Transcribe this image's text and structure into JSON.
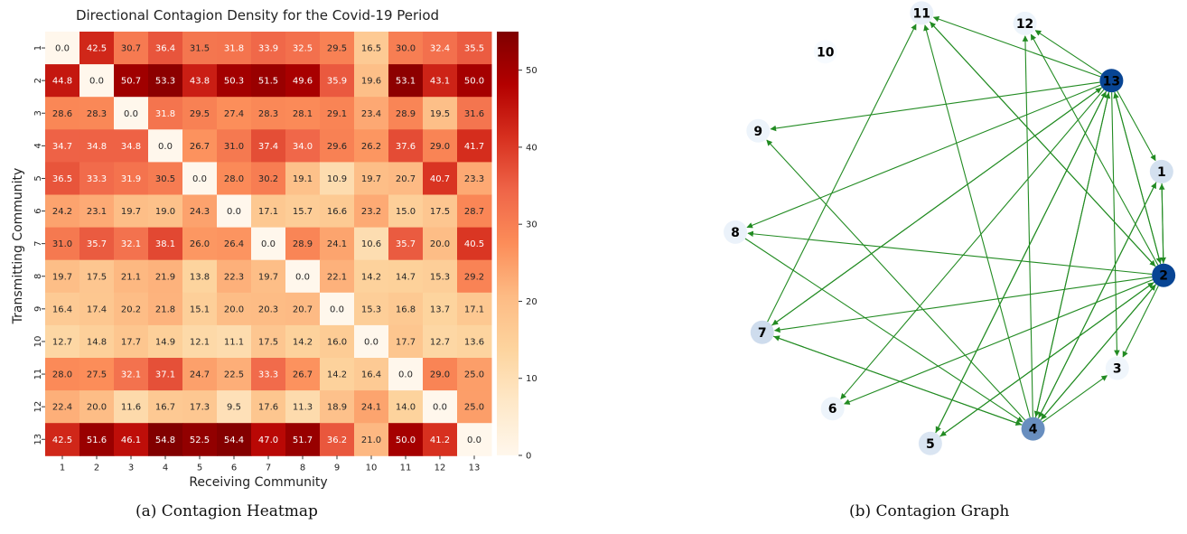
{
  "captions": {
    "left": "(a) Contagion Heatmap",
    "right": "(b) Contagion Graph"
  },
  "chart_data": [
    {
      "type": "heatmap",
      "title": "Directional Contagion Density for the Covid-19 Period",
      "xlabel": "Receiving Community",
      "ylabel": "Transmitting Community",
      "x_categories": [
        "1",
        "2",
        "3",
        "4",
        "5",
        "6",
        "7",
        "8",
        "9",
        "10",
        "11",
        "12",
        "13"
      ],
      "y_categories": [
        "1",
        "2",
        "3",
        "4",
        "5",
        "6",
        "7",
        "8",
        "9",
        "10",
        "11",
        "12",
        "13"
      ],
      "colormap": "OrRd",
      "colorbar": {
        "range": [
          0,
          55
        ],
        "ticks": [
          "0",
          "10",
          "20",
          "30",
          "40",
          "50"
        ]
      },
      "values": [
        [
          0.0,
          42.5,
          30.7,
          36.4,
          31.5,
          31.8,
          33.9,
          32.5,
          29.5,
          16.5,
          30.0,
          32.4,
          35.5
        ],
        [
          44.8,
          0.0,
          50.7,
          53.3,
          43.8,
          50.3,
          51.5,
          49.6,
          35.9,
          19.6,
          53.1,
          43.1,
          50.0
        ],
        [
          28.6,
          28.3,
          0.0,
          31.8,
          29.5,
          27.4,
          28.3,
          28.1,
          29.1,
          23.4,
          28.9,
          19.5,
          31.6
        ],
        [
          34.7,
          34.8,
          34.8,
          0.0,
          26.7,
          31.0,
          37.4,
          34.0,
          29.6,
          26.2,
          37.6,
          29.0,
          41.7
        ],
        [
          36.5,
          33.3,
          31.9,
          30.5,
          0.0,
          28.0,
          30.2,
          19.1,
          10.9,
          19.7,
          20.7,
          40.7,
          23.3
        ],
        [
          24.2,
          23.1,
          19.7,
          19.0,
          24.3,
          0.0,
          17.1,
          15.7,
          16.6,
          23.2,
          15.0,
          17.5,
          28.7
        ],
        [
          31.0,
          35.7,
          32.1,
          38.1,
          26.0,
          26.4,
          0.0,
          28.9,
          24.1,
          10.6,
          35.7,
          20.0,
          40.5
        ],
        [
          19.7,
          17.5,
          21.1,
          21.9,
          13.8,
          22.3,
          19.7,
          0.0,
          22.1,
          14.2,
          14.7,
          15.3,
          29.2
        ],
        [
          16.4,
          17.4,
          20.2,
          21.8,
          15.1,
          20.0,
          20.3,
          20.7,
          0.0,
          15.3,
          16.8,
          13.7,
          17.1
        ],
        [
          12.7,
          14.8,
          17.7,
          14.9,
          12.1,
          11.1,
          17.5,
          14.2,
          16.0,
          0.0,
          17.7,
          12.7,
          13.6
        ],
        [
          28.0,
          27.5,
          32.1,
          37.1,
          24.7,
          22.5,
          33.3,
          26.7,
          14.2,
          16.4,
          0.0,
          29.0,
          25.0
        ],
        [
          22.4,
          20.0,
          11.6,
          16.7,
          17.3,
          9.5,
          17.6,
          11.3,
          18.9,
          24.1,
          14.0,
          0.0,
          25.0
        ],
        [
          42.5,
          51.6,
          46.1,
          54.8,
          52.5,
          54.4,
          47.0,
          51.7,
          36.2,
          21.0,
          50.0,
          41.2,
          0.0
        ]
      ]
    },
    {
      "type": "network",
      "title": "",
      "layout": "circular",
      "edge_color": "#228b22",
      "nodes": [
        {
          "id": "1",
          "shade": 0.15
        },
        {
          "id": "2",
          "shade": 1.0
        },
        {
          "id": "3",
          "shade": 0.03
        },
        {
          "id": "4",
          "shade": 0.6
        },
        {
          "id": "5",
          "shade": 0.12
        },
        {
          "id": "6",
          "shade": 0.04
        },
        {
          "id": "7",
          "shade": 0.17
        },
        {
          "id": "8",
          "shade": 0.05
        },
        {
          "id": "9",
          "shade": 0.04
        },
        {
          "id": "10",
          "shade": 0.0
        },
        {
          "id": "11",
          "shade": 0.06
        },
        {
          "id": "12",
          "shade": 0.04
        },
        {
          "id": "13",
          "shade": 1.0
        }
      ],
      "edges": [
        [
          "13",
          "1"
        ],
        [
          "13",
          "2"
        ],
        [
          "13",
          "9"
        ],
        [
          "13",
          "8"
        ],
        [
          "13",
          "11"
        ],
        [
          "13",
          "12"
        ],
        [
          "13",
          "7"
        ],
        [
          "13",
          "6"
        ],
        [
          "13",
          "5"
        ],
        [
          "13",
          "4"
        ],
        [
          "13",
          "3"
        ],
        [
          "2",
          "13"
        ],
        [
          "2",
          "1"
        ],
        [
          "2",
          "7"
        ],
        [
          "2",
          "6"
        ],
        [
          "2",
          "5"
        ],
        [
          "2",
          "4"
        ],
        [
          "2",
          "3"
        ],
        [
          "2",
          "11"
        ],
        [
          "2",
          "8"
        ],
        [
          "2",
          "12"
        ],
        [
          "4",
          "11"
        ],
        [
          "4",
          "12"
        ],
        [
          "4",
          "13"
        ],
        [
          "4",
          "1"
        ],
        [
          "4",
          "2"
        ],
        [
          "4",
          "3"
        ],
        [
          "4",
          "7"
        ],
        [
          "4",
          "9"
        ],
        [
          "7",
          "11"
        ],
        [
          "7",
          "13"
        ],
        [
          "7",
          "4"
        ],
        [
          "8",
          "4"
        ],
        [
          "5",
          "13"
        ],
        [
          "5",
          "2"
        ],
        [
          "1",
          "2"
        ],
        [
          "1",
          "4"
        ],
        [
          "11",
          "2"
        ]
      ]
    }
  ]
}
